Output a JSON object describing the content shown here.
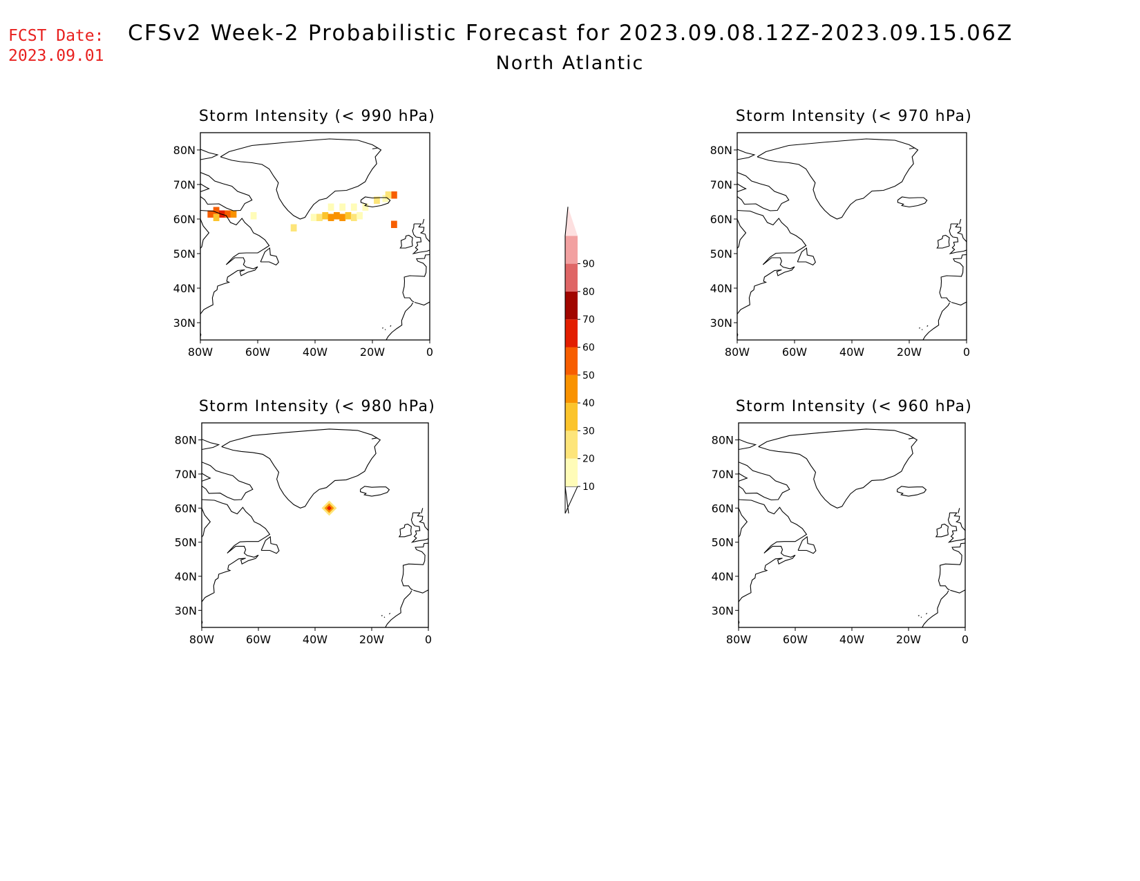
{
  "header": {
    "fcst_label": "FCST Date:",
    "fcst_date": "2023.09.01",
    "title": "CFSv2 Week-2 Probabilistic Forecast for 2023.09.08.12Z-2023.09.15.06Z",
    "subtitle": "North Atlantic"
  },
  "colors": {
    "fcst_text": "#e8201e",
    "coast": "#000000"
  },
  "axes": {
    "lat_ticks": [
      "80N",
      "70N",
      "60N",
      "50N",
      "40N",
      "30N"
    ],
    "lon_ticks": [
      "80W",
      "60W",
      "40W",
      "20W",
      "0"
    ]
  },
  "panels": [
    {
      "title": "Storm Intensity (< 990 hPa)",
      "threshold_hPa": 990,
      "cells": [
        {
          "lon": -76.5,
          "lat": 61.5,
          "prob": 55
        },
        {
          "lon": -74.5,
          "lat": 62.5,
          "prob": 50
        },
        {
          "lon": -72.5,
          "lat": 61.5,
          "prob": 65
        },
        {
          "lon": -70.5,
          "lat": 61.5,
          "prob": 55
        },
        {
          "lon": -68.5,
          "lat": 61.5,
          "prob": 45
        },
        {
          "lon": -74.5,
          "lat": 60.5,
          "prob": 35
        },
        {
          "lon": -61.5,
          "lat": 61.0,
          "prob": 15
        },
        {
          "lon": -47.5,
          "lat": 57.5,
          "prob": 25
        },
        {
          "lon": -40.5,
          "lat": 60.5,
          "prob": 15
        },
        {
          "lon": -38.5,
          "lat": 60.5,
          "prob": 25
        },
        {
          "lon": -36.5,
          "lat": 61.0,
          "prob": 35
        },
        {
          "lon": -34.5,
          "lat": 60.5,
          "prob": 45
        },
        {
          "lon": -32.5,
          "lat": 61.0,
          "prob": 40
        },
        {
          "lon": -30.5,
          "lat": 60.5,
          "prob": 45
        },
        {
          "lon": -28.5,
          "lat": 61.0,
          "prob": 35
        },
        {
          "lon": -26.5,
          "lat": 60.5,
          "prob": 25
        },
        {
          "lon": -24.5,
          "lat": 61.0,
          "prob": 15
        },
        {
          "lon": -34.5,
          "lat": 63.5,
          "prob": 15
        },
        {
          "lon": -30.5,
          "lat": 63.5,
          "prob": 15
        },
        {
          "lon": -26.5,
          "lat": 63.5,
          "prob": 15
        },
        {
          "lon": -22.5,
          "lat": 63.5,
          "prob": 15
        },
        {
          "lon": -18.5,
          "lat": 65.5,
          "prob": 25
        },
        {
          "lon": -15.5,
          "lat": 66.0,
          "prob": 15
        },
        {
          "lon": -12.5,
          "lat": 67.0,
          "prob": 55
        },
        {
          "lon": -14.5,
          "lat": 67.0,
          "prob": 25
        },
        {
          "lon": -12.5,
          "lat": 58.5,
          "prob": 55
        }
      ]
    },
    {
      "title": "Storm Intensity (< 970 hPa)",
      "threshold_hPa": 970,
      "cells": []
    },
    {
      "title": "Storm Intensity (< 980 hPa)",
      "threshold_hPa": 980,
      "cells": [
        {
          "lon": -35.0,
          "lat": 60.0,
          "prob": 45
        }
      ]
    },
    {
      "title": "Storm Intensity (< 960 hPa)",
      "threshold_hPa": 960,
      "cells": []
    }
  ],
  "colorbar": {
    "labels": [
      "10",
      "20",
      "30",
      "40",
      "50",
      "60",
      "70",
      "80",
      "90"
    ],
    "colors": [
      "#fffcb8",
      "#fde57a",
      "#fbc42c",
      "#f99200",
      "#f75e00",
      "#e21e00",
      "#a10600",
      "#df6666",
      "#f2a1a1",
      "#fde0e0"
    ]
  }
}
